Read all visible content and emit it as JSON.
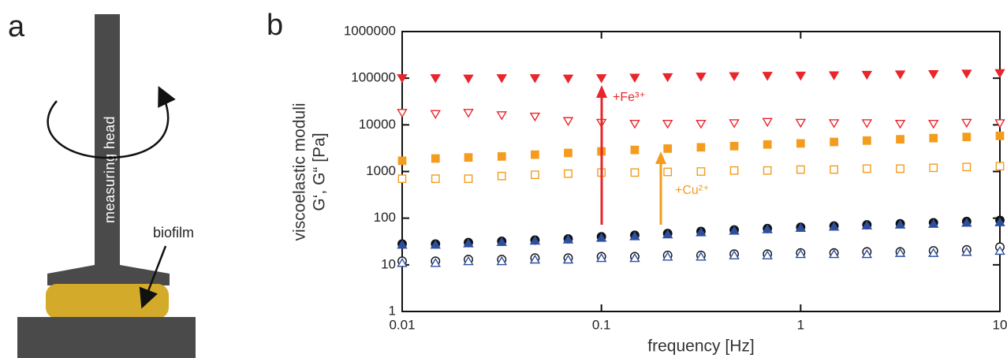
{
  "panel_a": {
    "label": "a",
    "head_label": "measuring head",
    "biofilm_label": "biofilm"
  },
  "chart_data": {
    "type": "scatter",
    "panel_label": "b",
    "xlabel": "frequency [Hz]",
    "ylabel": [
      "viscoelastic moduli",
      "G‘, G“ [Pa]"
    ],
    "xscale": "log",
    "yscale": "log",
    "xlim": [
      0.01,
      10
    ],
    "ylim": [
      1,
      1000000
    ],
    "xticks": [
      0.01,
      0.1,
      1,
      10
    ],
    "yticks": [
      1,
      10,
      100,
      1000,
      10000,
      100000,
      1000000
    ],
    "x": [
      0.01,
      0.0147,
      0.0215,
      0.0316,
      0.0464,
      0.0681,
      0.1,
      0.147,
      0.215,
      0.316,
      0.464,
      0.681,
      1,
      1.47,
      2.15,
      3.16,
      4.64,
      6.81,
      10
    ],
    "series": [
      {
        "color": "#e8262b",
        "marker": "triangle-down",
        "filled": true,
        "values": [
          100000,
          100000,
          98000,
          100000,
          100000,
          98000,
          100000,
          102000,
          105000,
          108000,
          110000,
          112000,
          113000,
          115000,
          118000,
          120000,
          122000,
          125000,
          128000
        ]
      },
      {
        "color": "#e8262b",
        "marker": "triangle-down",
        "filled": false,
        "values": [
          18000,
          17000,
          18000,
          16000,
          15000,
          12000,
          11000,
          10500,
          10500,
          10500,
          10800,
          11500,
          11000,
          10800,
          10800,
          10500,
          10500,
          11000,
          10800
        ]
      },
      {
        "color": "#f39c1e",
        "marker": "square",
        "filled": true,
        "values": [
          1700,
          1900,
          2000,
          2100,
          2300,
          2500,
          2700,
          2900,
          3100,
          3300,
          3500,
          3800,
          4000,
          4300,
          4600,
          4900,
          5200,
          5500,
          5800
        ]
      },
      {
        "color": "#f39c1e",
        "marker": "square",
        "filled": false,
        "values": [
          700,
          700,
          700,
          800,
          850,
          900,
          950,
          950,
          980,
          1000,
          1050,
          1050,
          1100,
          1100,
          1150,
          1150,
          1200,
          1250,
          1300
        ]
      },
      {
        "color": "#111111",
        "marker": "circle",
        "filled": true,
        "values": [
          28,
          28,
          30,
          32,
          34,
          36,
          40,
          43,
          47,
          52,
          56,
          60,
          64,
          68,
          72,
          76,
          80,
          85,
          90
        ]
      },
      {
        "color": "#2e4fa0",
        "marker": "triangle-up",
        "filled": true,
        "values": [
          27,
          27,
          29,
          31,
          33,
          35,
          38,
          41,
          45,
          50,
          54,
          58,
          62,
          66,
          70,
          73,
          76,
          80,
          82
        ]
      },
      {
        "color": "#111111",
        "marker": "circle",
        "filled": false,
        "values": [
          12,
          12,
          13,
          13,
          14,
          14,
          15,
          15,
          16,
          16,
          17,
          17,
          18,
          18,
          19,
          19,
          20,
          21,
          24
        ]
      },
      {
        "color": "#2e4fa0",
        "marker": "triangle-up",
        "filled": false,
        "values": [
          11,
          11,
          12,
          12,
          13,
          13,
          14,
          14,
          15,
          15,
          16,
          16,
          17,
          17,
          17,
          18,
          18,
          19,
          20
        ]
      }
    ],
    "annotations": [
      {
        "text": "+Fe³⁺",
        "color": "#e8262b"
      },
      {
        "text": "+Cu²⁺",
        "color": "#f39c1e"
      }
    ]
  }
}
